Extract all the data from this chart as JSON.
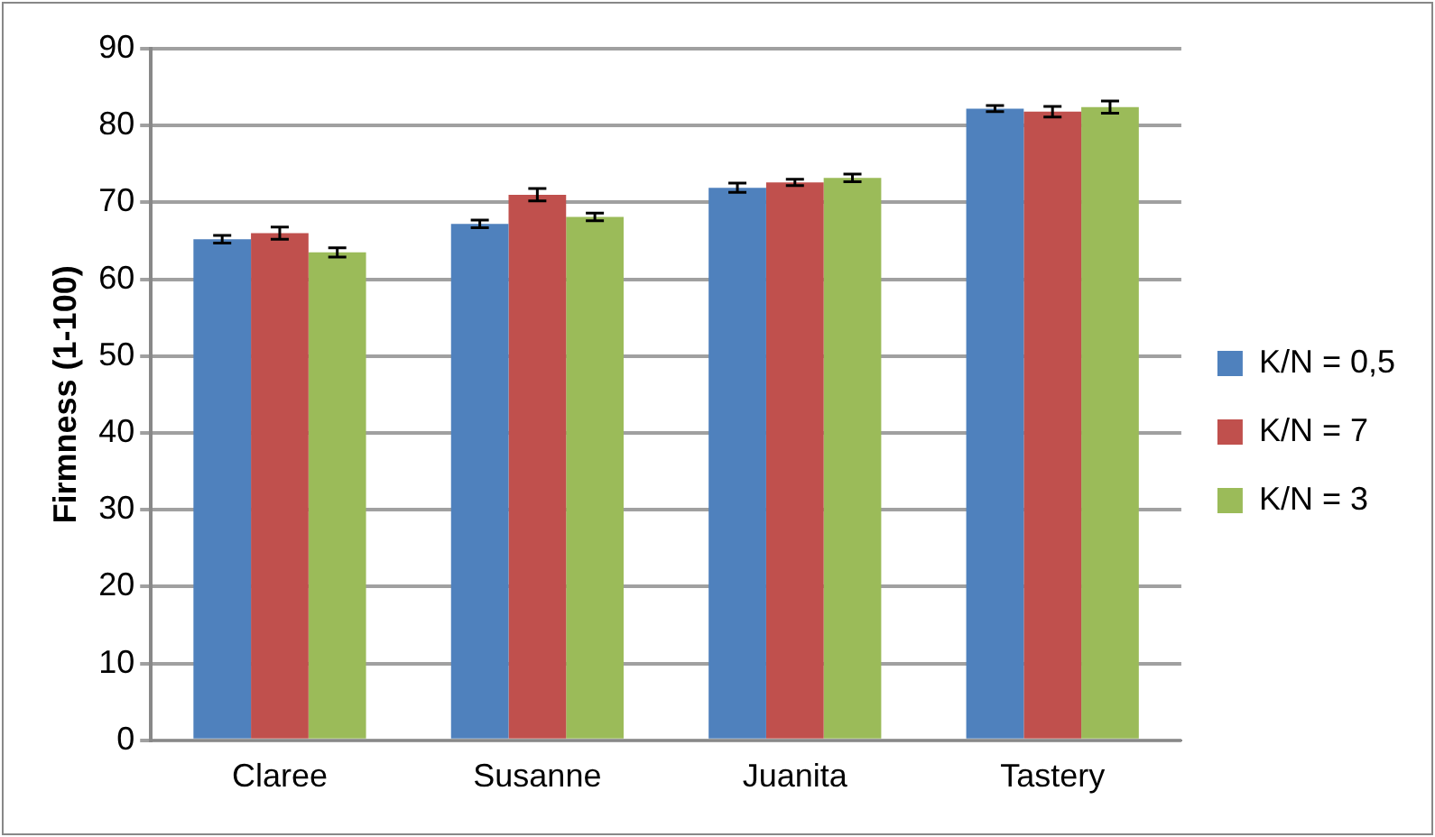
{
  "chart_data": {
    "type": "bar",
    "ylabel": "Firmness (1-100)",
    "categories": [
      "Claree",
      "Susanne",
      "Juanita",
      "Tastery"
    ],
    "series": [
      {
        "name": "K/N = 0,5",
        "color": "#4f81bd",
        "values": [
          65.2,
          67.2,
          71.9,
          82.2
        ],
        "errors": [
          0.5,
          0.5,
          0.6,
          0.4
        ]
      },
      {
        "name": "K/N = 7",
        "color": "#c0504d",
        "values": [
          66,
          71,
          72.6,
          81.8
        ],
        "errors": [
          0.8,
          0.8,
          0.4,
          0.7
        ]
      },
      {
        "name": "K/N = 3",
        "color": "#9bbb59",
        "values": [
          63.5,
          68.1,
          73.2,
          82.4
        ],
        "errors": [
          0.6,
          0.5,
          0.5,
          0.8
        ]
      }
    ],
    "ylim": [
      0,
      90
    ],
    "yticks": [
      0,
      10,
      20,
      30,
      40,
      50,
      60,
      70,
      80,
      90
    ],
    "grid": "y",
    "legend": "right"
  }
}
